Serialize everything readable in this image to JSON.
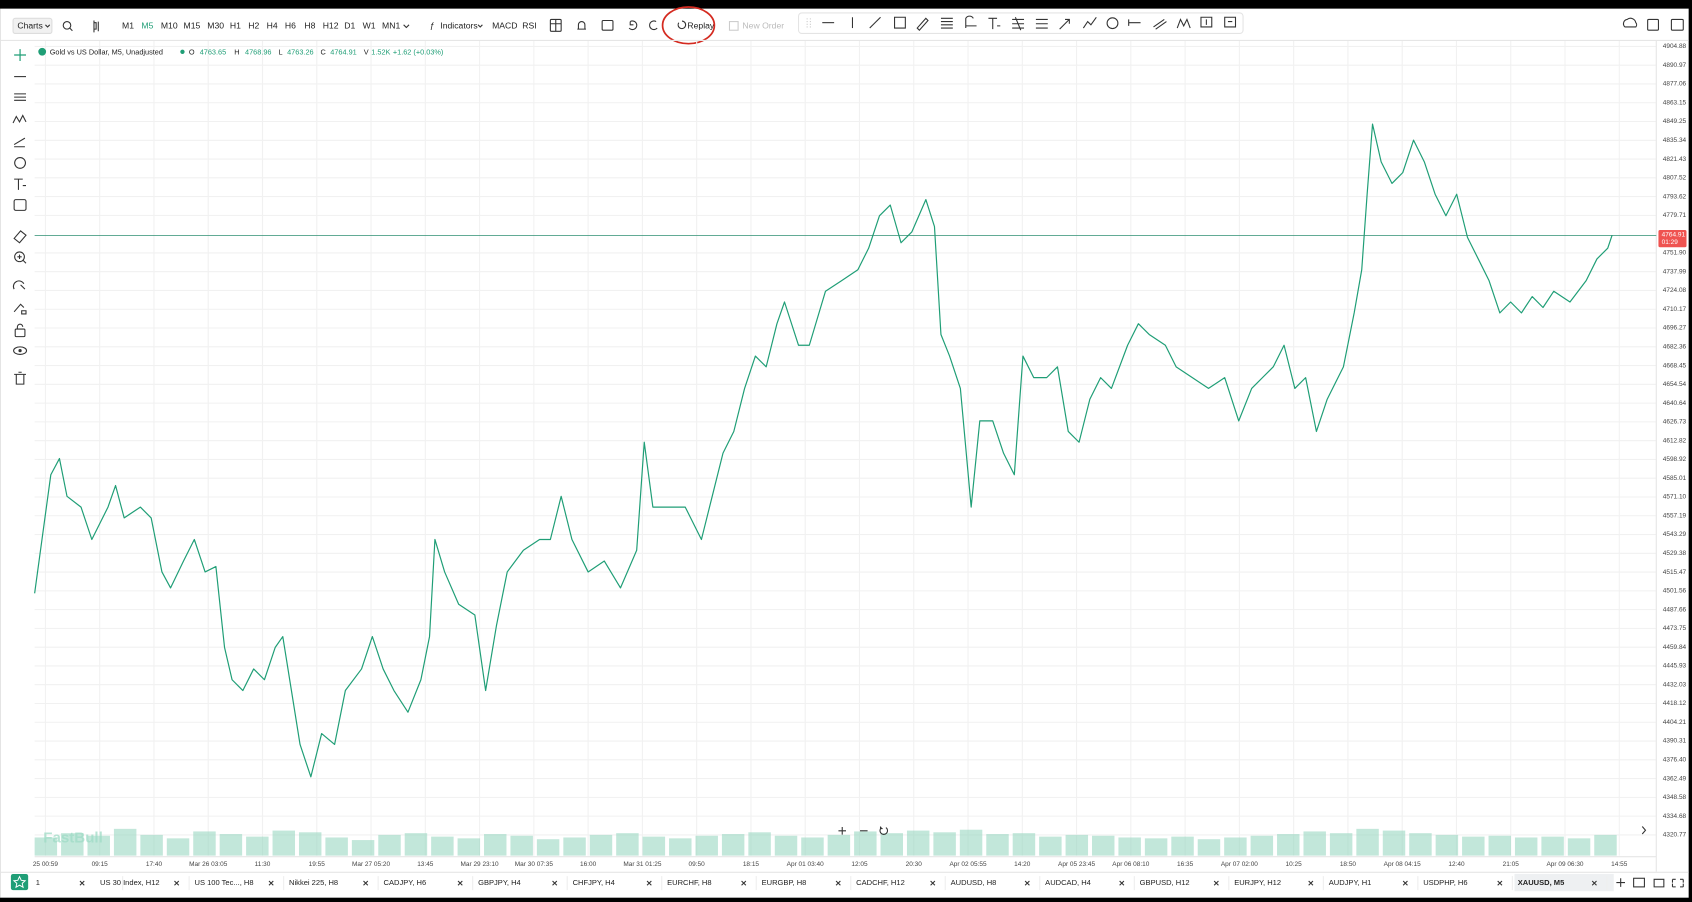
{
  "toolbar": {
    "charts": "Charts",
    "timeframes": [
      "M1",
      "M5",
      "M10",
      "M15",
      "M30",
      "H1",
      "H2",
      "H4",
      "H6",
      "H8",
      "H12",
      "D1",
      "W1",
      "MN1"
    ],
    "indicators": "Indicators",
    "macd": "MACD",
    "rsi": "RSI",
    "replay": "Replay",
    "new_order": "New Order"
  },
  "header": {
    "symbol": "Gold vs US Dollar, M5, Unadjusted",
    "o_label": "O",
    "o": "4763.65",
    "h_label": "H",
    "h": "4768.96",
    "l_label": "L",
    "l": "4763.26",
    "c_label": "C",
    "c": "4764.91",
    "v_label": "V",
    "v": "1.52K",
    "change": "+1.62 (+0.03%)"
  },
  "price_tag": {
    "price": "4764.91",
    "countdown": "01:29"
  },
  "watermark": "FastBull",
  "chart_data": [
    {
      "type": "line",
      "color": "#1f9e76",
      "grid": true,
      "xlim": [
        0,
        15030
      ],
      "ylim": [
        4305.44,
        4908.88
      ],
      "x": [
        0,
        150,
        230,
        300,
        430,
        530,
        680,
        750,
        830,
        980,
        1080,
        1180,
        1260,
        1380,
        1480,
        1580,
        1680,
        1760,
        1830,
        1930,
        2030,
        2130,
        2230,
        2300,
        2380,
        2460,
        2560,
        2660,
        2780,
        2880,
        3030,
        3130,
        3230,
        3330,
        3460,
        3580,
        3660,
        3710,
        3800,
        3930,
        4080,
        4180,
        4280,
        4380,
        4530,
        4680,
        4780,
        4880,
        4980,
        5130,
        5280,
        5430,
        5580,
        5650,
        5730,
        5880,
        6030,
        6180,
        6280,
        6380,
        6480,
        6580,
        6680,
        6780,
        6880,
        6950,
        7080,
        7180,
        7330,
        7480,
        7630,
        7730,
        7830,
        7930,
        8030,
        8130,
        8260,
        8340,
        8400,
        8480,
        8580,
        8680,
        8760,
        8880,
        8980,
        9080,
        9160,
        9260,
        9380,
        9480,
        9580,
        9680,
        9780,
        9880,
        9980,
        10130,
        10230,
        10330,
        10480,
        10580,
        10730,
        10880,
        11030,
        11160,
        11280,
        11380,
        11480,
        11580,
        11680,
        11780,
        11880,
        11980,
        12130,
        12230,
        12300,
        12350,
        12400,
        12480,
        12580,
        12680,
        12780,
        12880,
        12980,
        13080,
        13180,
        13280,
        13380,
        13480,
        13580,
        13680,
        13780,
        13880,
        13980,
        14080,
        14230,
        14380,
        14480,
        14580,
        14620
      ],
      "values": [
        4499.7,
        4587.6,
        4599.6,
        4571.6,
        4563.6,
        4539.6,
        4563.6,
        4579.6,
        4555.6,
        4563.6,
        4555.6,
        4515.6,
        4503.7,
        4523.6,
        4539.6,
        4515.6,
        4519.6,
        4459.7,
        4435.7,
        4427.7,
        4443.7,
        4435.7,
        4459.7,
        4467.7,
        4427.7,
        4387.8,
        4363.8,
        4395.8,
        4387.8,
        4427.7,
        4443.7,
        4467.7,
        4443.7,
        4427.7,
        4411.7,
        4435.7,
        4467.7,
        4539.6,
        4515.6,
        4491.7,
        4483.7,
        4427.7,
        4475.7,
        4515.6,
        4531.6,
        4539.6,
        4539.6,
        4571.6,
        4539.6,
        4515.6,
        4523.6,
        4503.7,
        4531.6,
        4611.6,
        4563.6,
        4563.6,
        4563.6,
        4539.6,
        4571.6,
        4603.6,
        4619.6,
        4651.5,
        4675.5,
        4667.5,
        4699.5,
        4715.5,
        4683.5,
        4683.5,
        4723.5,
        4731.4,
        4739.4,
        4755.4,
        4779.4,
        4787.4,
        4759.4,
        4767.4,
        4791.4,
        4771.4,
        4691.5,
        4675.5,
        4651.5,
        4563.6,
        4627.5,
        4627.5,
        4603.6,
        4587.6,
        4675.5,
        4659.5,
        4659.5,
        4667.5,
        4619.6,
        4611.6,
        4643.5,
        4659.5,
        4651.5,
        4683.5,
        4699.5,
        4691.5,
        4683.5,
        4667.5,
        4659.5,
        4651.5,
        4659.5,
        4627.5,
        4651.5,
        4659.5,
        4667.5,
        4683.5,
        4651.5,
        4659.5,
        4619.6,
        4643.5,
        4667.5,
        4707.5,
        4739.4,
        4795.4,
        4847.3,
        4819.4,
        4803.4,
        4811.4,
        4835.4,
        4819.4,
        4795.4,
        4779.4,
        4795.4,
        4763.4,
        4747.4,
        4731.4,
        4707.5,
        4715.5,
        4707.5,
        4719.5,
        4711.5,
        4723.5,
        4715.5,
        4731.4,
        4747.4,
        4755.4,
        4764.91
      ],
      "yticks": [
        4904.88,
        4890.97,
        4877.06,
        4863.15,
        4849.25,
        4835.34,
        4821.43,
        4807.52,
        4793.62,
        4779.71,
        {
          "value": 4751.9,
          "label": "4751.90"
        },
        4737.99,
        4724.08,
        4710.17,
        4696.27,
        4682.36,
        4668.45,
        4654.54,
        4640.64,
        4626.73,
        4612.82,
        4598.92,
        4585.01,
        {
          "value": 4571.1,
          "label": "4571.10"
        },
        4557.19,
        4543.29,
        4529.38,
        4515.47,
        4501.56,
        4487.66,
        4473.75,
        4459.84,
        4445.93,
        4432.03,
        4418.12,
        4404.21,
        4390.31,
        {
          "value": 4376.4,
          "label": "4376.40"
        },
        4362.49,
        4348.58,
        4334.68,
        4320.77
      ],
      "xticks": [
        {
          "value": 100,
          "label": "25 00:59"
        },
        {
          "value": 603,
          "label": "09:15"
        },
        {
          "value": 1106,
          "label": "17:40"
        },
        {
          "value": 1609,
          "label": "Mar 26 03:05"
        },
        {
          "value": 2112,
          "label": "11:30"
        },
        {
          "value": 2615,
          "label": "19:55"
        },
        {
          "value": 3118,
          "label": "Mar 27 05:20"
        },
        {
          "value": 3621,
          "label": "13:45"
        },
        {
          "value": 4124,
          "label": "Mar 29 23:10"
        },
        {
          "value": 4627,
          "label": "Mar 30 07:35"
        },
        {
          "value": 5130,
          "label": "16:00"
        },
        {
          "value": 5633,
          "label": "Mar 31 01:25"
        },
        {
          "value": 6136,
          "label": "09:50"
        },
        {
          "value": 6639,
          "label": "18:15"
        },
        {
          "value": 7142,
          "label": "Apr 01 03:40"
        },
        {
          "value": 7645,
          "label": "12:05"
        },
        {
          "value": 8148,
          "label": "20:30"
        },
        {
          "value": 8651,
          "label": "Apr 02 05:55"
        },
        {
          "value": 9154,
          "label": "14:20"
        },
        {
          "value": 9657,
          "label": "Apr 05 23:45"
        },
        {
          "value": 10160,
          "label": "Apr 06 08:10"
        },
        {
          "value": 10663,
          "label": "16:35"
        },
        {
          "value": 11166,
          "label": "Apr 07 02:00"
        },
        {
          "value": 11669,
          "label": "10:25"
        },
        {
          "value": 12172,
          "label": "18:50"
        },
        {
          "value": 12675,
          "label": "Apr 08 04:15"
        },
        {
          "value": 13178,
          "label": "12:40"
        },
        {
          "value": 13681,
          "label": "21:05"
        },
        {
          "value": 14184,
          "label": "Apr 09 06:30"
        },
        {
          "value": 14687,
          "label": "14:55"
        }
      ]
    },
    {
      "type": "bar",
      "color": "#8fd3bb",
      "xlim": [
        0,
        15030
      ],
      "ylim": [
        0,
        4
      ],
      "x": [
        0,
        245,
        490,
        735,
        980,
        1225,
        1470,
        1715,
        1960,
        2205,
        2450,
        2695,
        2940,
        3185,
        3430,
        3675,
        3920,
        4165,
        4410,
        4655,
        4900,
        5145,
        5390,
        5635,
        5880,
        6125,
        6370,
        6615,
        6860,
        7105,
        7350,
        7595,
        7840,
        8085,
        8330,
        8575,
        8820,
        9065,
        9310,
        9555,
        9800,
        10045,
        10290,
        10535,
        10780,
        11025,
        11270,
        11515,
        11760,
        12005,
        12250,
        12495,
        12740,
        12985,
        13230,
        13475,
        13720,
        13965,
        14210,
        14455
      ],
      "values": [
        2.1,
        2.6,
        2.3,
        3.1,
        2.4,
        2.0,
        2.8,
        2.5,
        2.2,
        2.9,
        2.7,
        2.1,
        1.8,
        2.4,
        2.6,
        2.2,
        2.0,
        2.5,
        2.3,
        1.9,
        2.1,
        2.4,
        2.6,
        2.2,
        2.0,
        2.3,
        2.5,
        2.7,
        2.3,
        2.1,
        2.4,
        2.8,
        2.6,
        2.9,
        2.7,
        3.0,
        2.5,
        2.6,
        2.2,
        2.4,
        2.3,
        2.1,
        2.0,
        2.2,
        1.9,
        2.1,
        2.3,
        2.5,
        2.8,
        2.6,
        3.1,
        2.9,
        2.6,
        2.4,
        2.2,
        2.3,
        2.1,
        2.2,
        2.0,
        2.4
      ]
    }
  ],
  "tabs": [
    "1",
    "US 30 Index, H12",
    "US 100 Tec..., H8",
    "Nikkei 225, H8",
    "CADJPY, H6",
    "GBPJPY, H4",
    "CHFJPY, H4",
    "EURCHF, H8",
    "EURGBP, H8",
    "CADCHF, H12",
    "AUDUSD, H8",
    "AUDCAD, H4",
    "GBPUSD, H12",
    "EURJPY, H12",
    "AUDJPY, H1",
    "USDPHP, H6",
    "XAUUSD, M5"
  ]
}
